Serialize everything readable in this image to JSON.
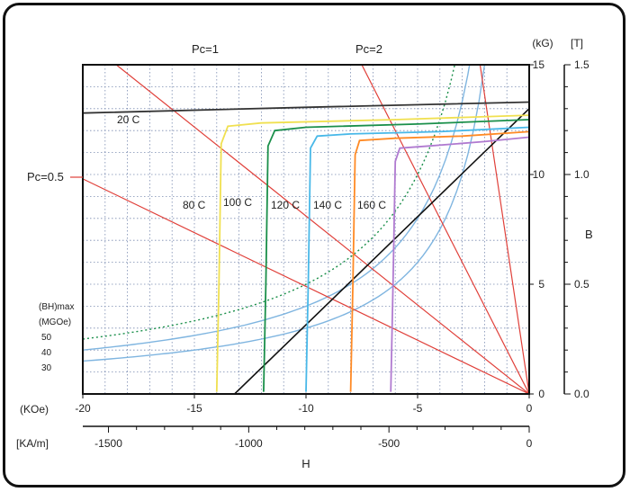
{
  "chart_data": {
    "type": "line",
    "title": "",
    "xlabel": "H",
    "x_unit_top": "(KOe)",
    "x_unit_bottom": "[KA/m]",
    "ylabel": "B",
    "y_unit_kG": "(kG)",
    "y_unit_T": "[T]",
    "xlim_koe": [
      -20,
      0
    ],
    "ylim_kg": [
      0,
      15
    ],
    "x_ticks_koe": [
      {
        "v": -20,
        "t": "-20"
      },
      {
        "v": -15,
        "t": "-15"
      },
      {
        "v": -10,
        "t": "-10"
      },
      {
        "v": -5,
        "t": "-5"
      },
      {
        "v": 0,
        "t": "0"
      }
    ],
    "x_ticks_kam": [
      {
        "v": -1500,
        "t": "-1500"
      },
      {
        "v": -1000,
        "t": "-1000"
      },
      {
        "v": -500,
        "t": "-500"
      },
      {
        "v": 0,
        "t": "0"
      }
    ],
    "y_ticks_kg": [
      {
        "v": 0,
        "t": "0"
      },
      {
        "v": 5,
        "t": "5"
      },
      {
        "v": 10,
        "t": "10"
      },
      {
        "v": 15,
        "t": "15"
      }
    ],
    "y_ticks_t": [
      {
        "v": 0.0,
        "t": "0.0"
      },
      {
        "v": 0.5,
        "t": "0.5"
      },
      {
        "v": 1.0,
        "t": "1.0"
      },
      {
        "v": 1.5,
        "t": "1.5"
      }
    ],
    "grid": true,
    "permeance_lines": [
      {
        "name": "Pc=1",
        "color": "#e0403a",
        "points": [
          [
            -18.5,
            15
          ],
          [
            0,
            0
          ]
        ]
      },
      {
        "name": "Pc=2",
        "color": "#e0403a",
        "points": [
          [
            -7.5,
            15
          ],
          [
            0,
            0
          ]
        ]
      },
      {
        "name": "Pc=0.5",
        "color": "#e0403a",
        "points": [
          [
            -20,
            9.8
          ],
          [
            0,
            0
          ]
        ]
      },
      {
        "name": "",
        "color": "#e0403a",
        "points": [
          [
            -2.2,
            15
          ],
          [
            0,
            0
          ]
        ]
      }
    ],
    "bh_max_label_1": "(BH)max",
    "bh_max_label_2": "(MGOe)",
    "bh_max_values": [
      {
        "t": "50",
        "v": 50
      },
      {
        "t": "40",
        "v": 40
      },
      {
        "t": "30",
        "v": 30
      }
    ],
    "recoil_line": {
      "color": "#111111",
      "points": [
        [
          -13.2,
          0
        ],
        [
          0,
          13.0
        ]
      ]
    },
    "series": [
      {
        "name": "20 C",
        "color": "#333333",
        "points": [
          [
            -20,
            12.8
          ],
          [
            -10,
            13.06
          ],
          [
            0,
            13.3
          ]
        ]
      },
      {
        "name": "80 C",
        "color": "#f0e050",
        "points": [
          [
            -14.0,
            0.1
          ],
          [
            -13.9,
            5
          ],
          [
            -13.8,
            11.4
          ],
          [
            -13.5,
            12.2
          ],
          [
            -12,
            12.35
          ],
          [
            -6,
            12.5
          ],
          [
            0,
            12.7
          ]
        ]
      },
      {
        "name": "100 C",
        "color": "#1a8f4a",
        "points": [
          [
            -11.9,
            0.1
          ],
          [
            -11.8,
            5
          ],
          [
            -11.7,
            11.3
          ],
          [
            -11.4,
            12.0
          ],
          [
            -10,
            12.15
          ],
          [
            -5,
            12.3
          ],
          [
            0,
            12.5
          ]
        ]
      },
      {
        "name": "120 C",
        "color": "#48b8e8",
        "points": [
          [
            -10.0,
            0.1
          ],
          [
            -9.9,
            5
          ],
          [
            -9.8,
            11.2
          ],
          [
            -9.5,
            11.75
          ],
          [
            -8,
            11.85
          ],
          [
            -4,
            11.95
          ],
          [
            0,
            12.15
          ]
        ]
      },
      {
        "name": "140 C",
        "color": "#ff8a25",
        "points": [
          [
            -8.0,
            0.1
          ],
          [
            -7.9,
            5
          ],
          [
            -7.8,
            10.9
          ],
          [
            -7.6,
            11.55
          ],
          [
            -6,
            11.65
          ],
          [
            -3,
            11.75
          ],
          [
            0,
            11.95
          ]
        ]
      },
      {
        "name": "160 C",
        "color": "#b07ad0",
        "points": [
          [
            -6.2,
            0.1
          ],
          [
            -6.1,
            5
          ],
          [
            -6.0,
            10.6
          ],
          [
            -5.8,
            11.2
          ],
          [
            -4.5,
            11.3
          ],
          [
            -2,
            11.5
          ],
          [
            0,
            11.7
          ]
        ]
      }
    ]
  }
}
